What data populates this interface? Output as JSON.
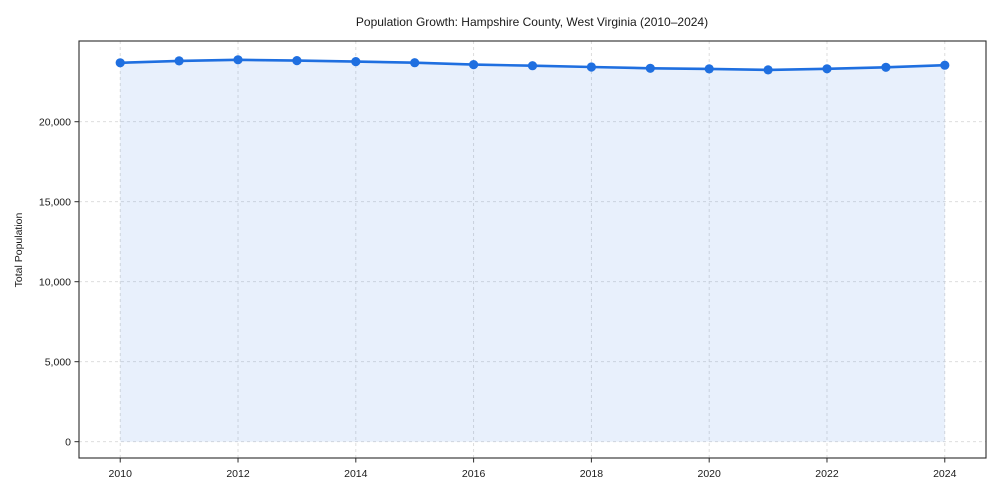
{
  "page": {
    "background": "#ffffff"
  },
  "chart_data": {
    "type": "line",
    "title": "Population Growth: Hampshire County, West Virginia (2010–2024)",
    "xlabel": "",
    "ylabel": "Total Population",
    "x": [
      2010,
      2011,
      2012,
      2013,
      2014,
      2015,
      2016,
      2017,
      2018,
      2019,
      2020,
      2021,
      2022,
      2023,
      2024
    ],
    "series": [
      {
        "name": "Total Population",
        "values": [
          23680,
          23800,
          23870,
          23820,
          23760,
          23690,
          23570,
          23500,
          23420,
          23340,
          23300,
          23240,
          23310,
          23400,
          23530
        ]
      }
    ],
    "xticks": [
      2010,
      2012,
      2014,
      2016,
      2018,
      2020,
      2022,
      2024
    ],
    "yticks": [
      0,
      5000,
      10000,
      15000,
      20000
    ],
    "xlim": [
      2009.3,
      2024.7
    ],
    "ylim": [
      -1020,
      25045
    ],
    "grid": true,
    "grid_style": "dashed",
    "legend": false,
    "marker": "circle",
    "fill_to_zero": true,
    "colors": {
      "line": "#1f6fe0",
      "marker": "#1f6fe0",
      "area_fill": "rgba(31,111,224,0.10)",
      "grid": "#d9d9d9",
      "spine": "#2b2b2b",
      "text": "#1a1a1a",
      "background": "#ffffff"
    }
  }
}
